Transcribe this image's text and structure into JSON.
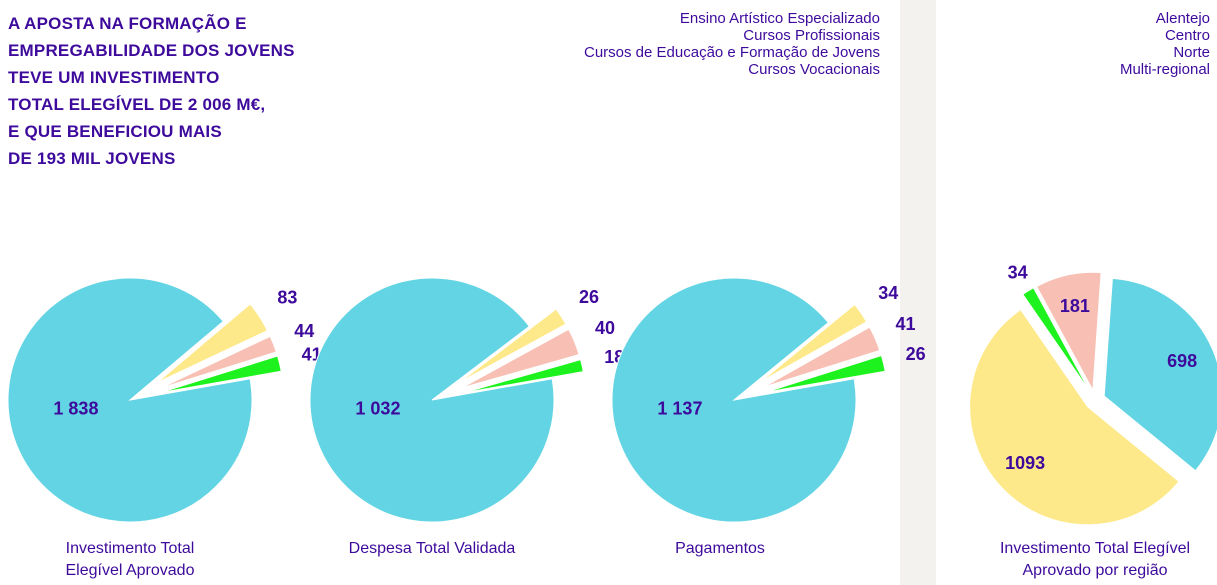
{
  "headline_lines": [
    "A APOSTA NA FORMAÇÃO E",
    "EMPREGABILIDADE DOS JOVENS",
    "TEVE UM INVESTIMENTO",
    "TOTAL ELEGÍVEL DE 2 006 M€,",
    "E QUE BENEFICIOU MAIS",
    "DE 193 MIL JOVENS"
  ],
  "chart_data": [
    {
      "type": "pie",
      "title": "Investimento Total Elegível Aprovado",
      "categories": [
        "Ensino Artístico Especializado",
        "Cursos Profissionais",
        "Cursos de Educação e Formação de Jovens",
        "Cursos Vocacionais"
      ],
      "colors": [
        "#f8c0b4",
        "#62d4e3",
        "#fde98a",
        "#1ef21e"
      ],
      "values": [
        44,
        1838,
        83,
        41
      ],
      "value_labels": [
        "44",
        "1 838",
        "83",
        "41"
      ]
    },
    {
      "type": "pie",
      "title": "Despesa Total Validada",
      "categories": [
        "Ensino Artístico Especializado",
        "Cursos Profissionais",
        "Cursos de Educação e Formação de Jovens",
        "Cursos Vocacionais"
      ],
      "colors": [
        "#f8c0b4",
        "#62d4e3",
        "#fde98a",
        "#1ef21e"
      ],
      "values": [
        40,
        1032,
        26,
        18
      ],
      "value_labels": [
        "40",
        "1 032",
        "26",
        "18"
      ]
    },
    {
      "type": "pie",
      "title": "Pagamentos",
      "categories": [
        "Ensino Artístico Especializado",
        "Cursos Profissionais",
        "Cursos de Educação e Formação de Jovens",
        "Cursos Vocacionais"
      ],
      "colors": [
        "#f8c0b4",
        "#62d4e3",
        "#fde98a",
        "#1ef21e"
      ],
      "values": [
        41,
        1137,
        34,
        26
      ],
      "value_labels": [
        "41",
        "1 137",
        "34",
        "26"
      ]
    },
    {
      "type": "pie",
      "title": "Investimento Total Elegível Aprovado por região",
      "categories": [
        "Alentejo",
        "Centro",
        "Norte",
        "Multi-regional"
      ],
      "colors": [
        "#f8c0b4",
        "#62d4e3",
        "#fde98a",
        "#1ef21e"
      ],
      "values": [
        181,
        698,
        1093,
        34
      ]
    }
  ]
}
